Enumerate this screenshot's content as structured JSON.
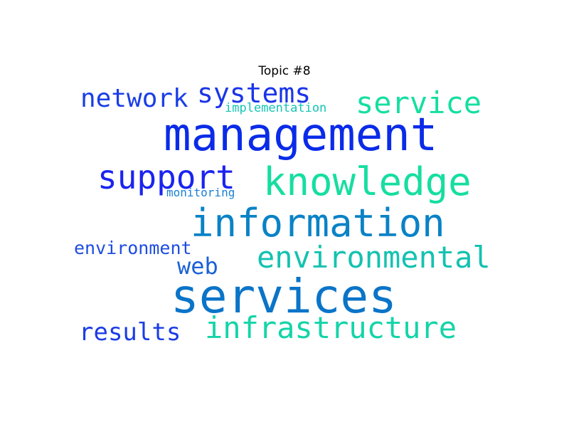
{
  "title": "Topic #8",
  "words": [
    {
      "key": "management",
      "text": "management",
      "color": "#0a2be8"
    },
    {
      "key": "services",
      "text": "services",
      "color": "#0a74c8"
    },
    {
      "key": "information",
      "text": "information",
      "color": "#0a82c6"
    },
    {
      "key": "knowledge",
      "text": "knowledge",
      "color": "#16dea0"
    },
    {
      "key": "support",
      "text": "support",
      "color": "#1a24f0"
    },
    {
      "key": "infrastructure",
      "text": "infrastructure",
      "color": "#14d4a8"
    },
    {
      "key": "environmental",
      "text": "environmental",
      "color": "#14c2b0"
    },
    {
      "key": "service",
      "text": "service",
      "color": "#14dfa0"
    },
    {
      "key": "systems",
      "text": "systems",
      "color": "#1a34e8"
    },
    {
      "key": "network",
      "text": "network",
      "color": "#1a3ee6"
    },
    {
      "key": "results",
      "text": "results",
      "color": "#1a3ce6"
    },
    {
      "key": "web",
      "text": "web",
      "color": "#1a62d6"
    },
    {
      "key": "environment",
      "text": "environment",
      "color": "#1e4ce0"
    },
    {
      "key": "implementation",
      "text": "implementation",
      "color": "#14c4b4"
    },
    {
      "key": "monitoring",
      "text": "monitoring",
      "color": "#1a80d2"
    }
  ]
}
